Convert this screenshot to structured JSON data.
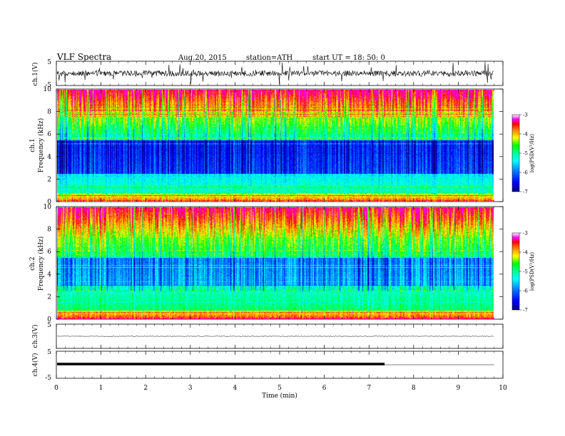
{
  "header": {
    "title": "VLF  Spectra",
    "date": "Aug.20, 2015",
    "station": "station=ATH",
    "start": "start  UT =    18: 50: 0"
  },
  "chart_data": {
    "type": "spectrogram",
    "xlabel": "Time  (min)",
    "xlim": [
      0,
      10
    ],
    "xticks": [
      "0",
      "1",
      "2",
      "3",
      "4",
      "5",
      "6",
      "7",
      "8",
      "9",
      "10"
    ],
    "data_end_min": 9.8,
    "panels": [
      {
        "id": "ch1_waveform",
        "ylabel": "ch.1(V)",
        "yticks": [
          "5",
          "-5"
        ],
        "ylim": [
          -5,
          5
        ]
      },
      {
        "id": "ch1_spectrogram",
        "ylabel_top": "ch.1",
        "ylabel": "Frequency  (kHz)",
        "yticks": [
          "0",
          "2",
          "4",
          "6",
          "8",
          "10"
        ],
        "ylim": [
          0,
          10
        ],
        "colorbar": {
          "label": "log(PSD(V²/Hz)",
          "ticks": [
            "-3",
            "-4",
            "-5",
            "-6",
            "-7"
          ],
          "range": [
            -7,
            -3
          ]
        }
      },
      {
        "id": "ch2_spectrogram",
        "ylabel_top": "ch.2",
        "ylabel": "Frequency  (kHz)",
        "yticks": [
          "0",
          "2",
          "4",
          "6",
          "8",
          "10"
        ],
        "ylim": [
          0,
          10
        ],
        "colorbar": {
          "label": "log(PSD(V²/Hz)",
          "ticks": [
            "-3",
            "-4",
            "-5",
            "-6",
            "-7"
          ],
          "range": [
            -7,
            -3
          ]
        }
      },
      {
        "id": "ch3_waveform",
        "ylabel": "ch.3(V)",
        "yticks": [
          "5"
        ],
        "ylim": [
          -5,
          5
        ]
      },
      {
        "id": "ch4_waveform",
        "ylabel": "ch.4(V)",
        "yticks": [
          "5",
          "-5"
        ],
        "ylim": [
          -5,
          5
        ],
        "thick_segment_end_min": 7.35
      }
    ]
  },
  "colors": {
    "scale": [
      "#000080",
      "#0000ff",
      "#0080ff",
      "#00ffff",
      "#00ff80",
      "#00ff00",
      "#ffff00",
      "#ff8000",
      "#ff0000",
      "#ff00ff",
      "#ffffff"
    ]
  }
}
